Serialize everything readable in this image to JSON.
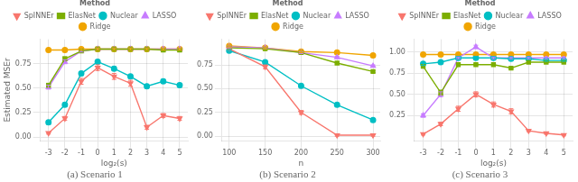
{
  "chart_data": [
    {
      "type": "line",
      "title": "(a) Scenario 1",
      "x_label": "log₂(s)",
      "y_label": "Estimated MSEr",
      "x": [
        -3,
        -2,
        -1,
        0,
        1,
        2,
        3,
        4,
        5
      ],
      "series": [
        {
          "name": "SpINNEr",
          "color": "#f8766d",
          "marker": "triangle-down",
          "values": [
            0.04,
            0.19,
            0.57,
            0.71,
            0.62,
            0.55,
            0.1,
            0.22,
            0.19
          ],
          "errors": [
            0.01,
            0.02,
            0.03,
            0.03,
            0.03,
            0.03,
            0.02,
            0.02,
            0.02
          ]
        },
        {
          "name": "ElasNet",
          "color": "#7cae00",
          "marker": "square",
          "values": [
            0.53,
            0.8,
            0.88,
            0.9,
            0.9,
            0.9,
            0.9,
            0.89,
            0.89
          ],
          "errors": [
            0.02,
            0.02,
            0.01,
            0.01,
            0.01,
            0.01,
            0.01,
            0.01,
            0.01
          ]
        },
        {
          "name": "Nuclear",
          "color": "#00bfc4",
          "marker": "circle",
          "values": [
            0.15,
            0.33,
            0.65,
            0.77,
            0.7,
            0.62,
            0.52,
            0.57,
            0.53
          ],
          "errors": [
            0.02,
            0.02,
            0.02,
            0.02,
            0.02,
            0.02,
            0.02,
            0.02,
            0.02
          ]
        },
        {
          "name": "LASSO",
          "color": "#c77cff",
          "marker": "triangle-up",
          "values": [
            0.51,
            0.77,
            0.88,
            0.9,
            0.9,
            0.9,
            0.9,
            0.9,
            0.9
          ],
          "errors": [
            0.02,
            0.02,
            0.01,
            0.01,
            0.01,
            0.01,
            0.01,
            0.01,
            0.01
          ]
        },
        {
          "name": "Ridge",
          "color": "#f0a500",
          "marker": "circle",
          "values": [
            0.89,
            0.89,
            0.9,
            0.9,
            0.9,
            0.9,
            0.9,
            0.9,
            0.9
          ],
          "errors": [
            0.01,
            0.01,
            0.01,
            0.01,
            0.01,
            0.01,
            0.01,
            0.01,
            0.01
          ]
        }
      ],
      "xlim": [
        -3.5,
        5.5
      ],
      "xticks": [
        -3,
        -2,
        -1,
        0,
        1,
        2,
        3,
        4,
        5
      ],
      "ylim": [
        -0.04,
        1.0
      ],
      "yticks": [
        {
          "value": 0.0,
          "label": "0.00"
        },
        {
          "value": 0.25,
          "label": "0.25"
        },
        {
          "value": 0.5,
          "label": "0.50"
        },
        {
          "value": 0.75,
          "label": "0.75"
        }
      ],
      "grid": true,
      "legend": "top",
      "legend_title": "Method"
    },
    {
      "type": "line",
      "title": "(b) Scenario 2",
      "x_label": "n",
      "x": [
        100,
        150,
        200,
        250,
        300
      ],
      "series": [
        {
          "name": "SpINNEr",
          "color": "#f8766d",
          "marker": "triangle-down",
          "values": [
            0.92,
            0.73,
            0.25,
            0.01,
            0.01
          ],
          "errors": [
            0.01,
            0.02,
            0.02,
            0.01,
            0.01
          ]
        },
        {
          "name": "ElasNet",
          "color": "#7cae00",
          "marker": "square",
          "values": [
            0.93,
            0.92,
            0.88,
            0.77,
            0.68
          ],
          "errors": [
            0.01,
            0.01,
            0.01,
            0.01,
            0.01
          ]
        },
        {
          "name": "Nuclear",
          "color": "#00bfc4",
          "marker": "circle",
          "values": [
            0.9,
            0.78,
            0.53,
            0.33,
            0.17
          ],
          "errors": [
            0.01,
            0.01,
            0.01,
            0.01,
            0.01
          ]
        },
        {
          "name": "LASSO",
          "color": "#c77cff",
          "marker": "triangle-up",
          "values": [
            0.94,
            0.93,
            0.88,
            0.83,
            0.74
          ],
          "errors": [
            0.01,
            0.01,
            0.01,
            0.01,
            0.01
          ]
        },
        {
          "name": "Ridge",
          "color": "#f0a500",
          "marker": "circle",
          "values": [
            0.95,
            0.93,
            0.89,
            0.88,
            0.85
          ],
          "errors": [
            0.01,
            0.01,
            0.01,
            0.01,
            0.01
          ]
        }
      ],
      "xlim": [
        90,
        310
      ],
      "xticks": [
        100,
        150,
        200,
        250,
        300
      ],
      "ylim": [
        -0.05,
        1.02
      ],
      "yticks": [
        {
          "value": 0.0,
          "label": "0.00"
        },
        {
          "value": 0.25,
          "label": "0.25"
        },
        {
          "value": 0.5,
          "label": "0.50"
        },
        {
          "value": 0.75,
          "label": "0.75"
        }
      ],
      "grid": true,
      "legend": "top",
      "legend_title": "Method"
    },
    {
      "type": "line",
      "title": "(c) Scenario 3",
      "x_label": "log₂(s)",
      "x": [
        -3,
        -2,
        -1,
        0,
        1,
        2,
        3,
        4,
        5
      ],
      "series": [
        {
          "name": "SpINNEr",
          "color": "#f8766d",
          "marker": "triangle-down",
          "values": [
            0.03,
            0.15,
            0.33,
            0.5,
            0.38,
            0.3,
            0.07,
            0.04,
            0.02
          ],
          "errors": [
            0.01,
            0.02,
            0.03,
            0.03,
            0.03,
            0.03,
            0.01,
            0.01,
            0.01
          ]
        },
        {
          "name": "ElasNet",
          "color": "#7cae00",
          "marker": "square",
          "values": [
            0.83,
            0.52,
            0.85,
            0.85,
            0.85,
            0.81,
            0.88,
            0.88,
            0.88
          ],
          "errors": [
            0.02,
            0.03,
            0.01,
            0.01,
            0.01,
            0.01,
            0.01,
            0.01,
            0.01
          ]
        },
        {
          "name": "Nuclear",
          "color": "#00bfc4",
          "marker": "circle",
          "values": [
            0.86,
            0.88,
            0.93,
            0.93,
            0.93,
            0.92,
            0.92,
            0.9,
            0.9
          ],
          "errors": [
            0.02,
            0.01,
            0.01,
            0.01,
            0.01,
            0.01,
            0.01,
            0.01,
            0.01
          ]
        },
        {
          "name": "LASSO",
          "color": "#c77cff",
          "marker": "triangle-up",
          "values": [
            0.25,
            0.5,
            0.93,
            1.06,
            0.93,
            0.93,
            0.93,
            0.93,
            0.93
          ],
          "errors": [
            0.02,
            0.03,
            0.01,
            0.02,
            0.01,
            0.01,
            0.01,
            0.01,
            0.01
          ]
        },
        {
          "name": "Ridge",
          "color": "#f0a500",
          "marker": "circle",
          "values": [
            0.97,
            0.97,
            0.97,
            0.97,
            0.97,
            0.97,
            0.97,
            0.97,
            0.97
          ],
          "errors": [
            0.01,
            0.01,
            0.01,
            0.01,
            0.01,
            0.01,
            0.01,
            0.01,
            0.01
          ]
        }
      ],
      "xlim": [
        -3.5,
        5.5
      ],
      "xticks": [
        -3,
        -2,
        -1,
        0,
        1,
        2,
        3,
        4,
        5
      ],
      "ylim": [
        -0.05,
        1.15
      ],
      "yticks": [
        {
          "value": 0.25,
          "label": "0.25"
        },
        {
          "value": 0.5,
          "label": "0.50"
        },
        {
          "value": 0.75,
          "label": "0.75"
        },
        {
          "value": 1.0,
          "label": "1.00"
        }
      ],
      "grid": true,
      "legend": "top",
      "legend_title": "Method"
    }
  ]
}
